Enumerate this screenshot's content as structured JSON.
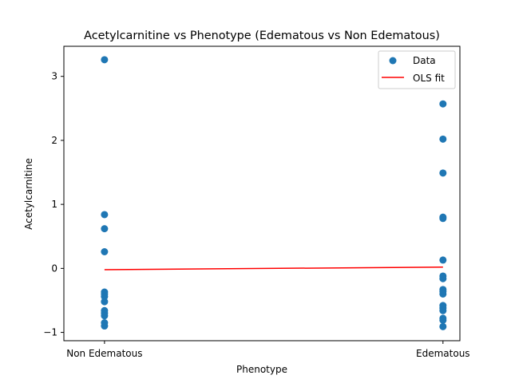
{
  "chart_data": {
    "type": "scatter",
    "title": "Acetylcarnitine vs Phenotype (Edematous vs Non Edematous)",
    "xlabel": "Phenotype",
    "ylabel": "Acetylcarnitine",
    "categories": [
      "Non Edematous",
      "Edematous"
    ],
    "x_ticks": [
      0,
      1
    ],
    "ylim": [
      -1.13,
      3.47
    ],
    "xlim": [
      -0.12,
      1.05
    ],
    "y_ticks": [
      -1,
      0,
      1,
      2,
      3
    ],
    "y_tick_labels": [
      "−1",
      "0",
      "1",
      "2",
      "3"
    ],
    "grid": false,
    "legend": {
      "position": "top-right",
      "entries": [
        "Data",
        "OLS fit"
      ]
    },
    "colors": {
      "points": "#1f77b4",
      "fit": "#ff0000"
    },
    "series": [
      {
        "name": "Data",
        "kind": "scatter",
        "points": [
          {
            "x": 0,
            "y": 3.26
          },
          {
            "x": 0,
            "y": 0.84
          },
          {
            "x": 0,
            "y": 0.62
          },
          {
            "x": 0,
            "y": 0.26
          },
          {
            "x": 0,
            "y": -0.37
          },
          {
            "x": 0,
            "y": -0.4
          },
          {
            "x": 0,
            "y": -0.44
          },
          {
            "x": 0,
            "y": -0.52
          },
          {
            "x": 0,
            "y": -0.66
          },
          {
            "x": 0,
            "y": -0.7
          },
          {
            "x": 0,
            "y": -0.74
          },
          {
            "x": 0,
            "y": -0.85
          },
          {
            "x": 0,
            "y": -0.9
          },
          {
            "x": 1,
            "y": 2.57
          },
          {
            "x": 1,
            "y": 2.02
          },
          {
            "x": 1,
            "y": 1.49
          },
          {
            "x": 1,
            "y": 0.8
          },
          {
            "x": 1,
            "y": 0.78
          },
          {
            "x": 1,
            "y": 0.13
          },
          {
            "x": 1,
            "y": -0.12
          },
          {
            "x": 1,
            "y": -0.16
          },
          {
            "x": 1,
            "y": -0.33
          },
          {
            "x": 1,
            "y": -0.36
          },
          {
            "x": 1,
            "y": -0.4
          },
          {
            "x": 1,
            "y": -0.58
          },
          {
            "x": 1,
            "y": -0.62
          },
          {
            "x": 1,
            "y": -0.66
          },
          {
            "x": 1,
            "y": -0.78
          },
          {
            "x": 1,
            "y": -0.81
          },
          {
            "x": 1,
            "y": -0.91
          }
        ]
      },
      {
        "name": "OLS fit",
        "kind": "line",
        "points": [
          {
            "x": 0,
            "y": -0.02
          },
          {
            "x": 1,
            "y": 0.02
          }
        ]
      }
    ]
  }
}
